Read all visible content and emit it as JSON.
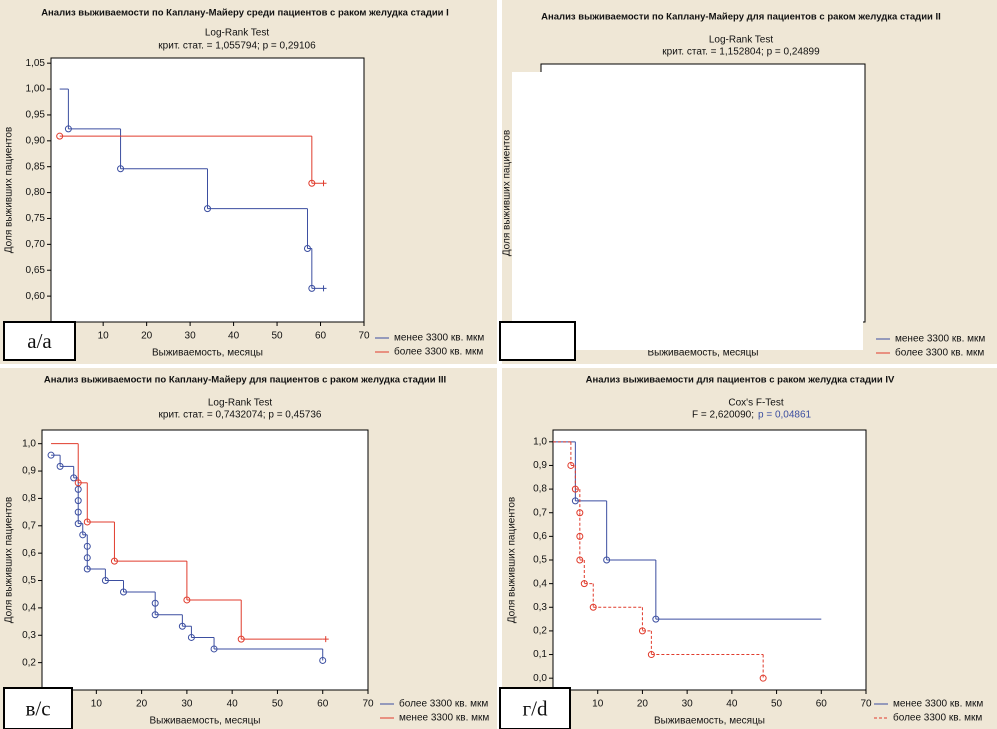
{
  "chart_data": [
    {
      "type": "kaplan-meier",
      "panel_label": "а/а",
      "title": "Анализ выживаемости по Каплану-Майеру среди пациентов с раком желудка стадии I",
      "test": "Log-Rank Test",
      "stat": "крит. стат. = 1,055794; p = 0,29106",
      "xlabel": "Выживаемость, месяцы",
      "ylabel": "Доля выживших пациентов",
      "xlim": [
        -2,
        70
      ],
      "xticks": [
        10,
        20,
        30,
        40,
        50,
        60,
        70
      ],
      "ylim": [
        0.55,
        1.06
      ],
      "yticks": [
        {
          "value": 0.6,
          "label": "0,60"
        },
        {
          "value": 0.65,
          "label": "0,65"
        },
        {
          "value": 0.7,
          "label": "0,70"
        },
        {
          "value": 0.75,
          "label": "0,75"
        },
        {
          "value": 0.8,
          "label": "0,80"
        },
        {
          "value": 0.85,
          "label": "0,85"
        },
        {
          "value": 0.9,
          "label": "0,90"
        },
        {
          "value": 0.95,
          "label": "0,95"
        },
        {
          "value": 1.0,
          "label": "1,00"
        },
        {
          "value": 1.05,
          "label": "1,05"
        }
      ],
      "censored_end_marks": true,
      "series": [
        {
          "name": "менее 3300 кв. мкм",
          "color": "#3b4ea0",
          "x": [
            0,
            2,
            14,
            34,
            57,
            58,
            60
          ],
          "values": [
            1.0,
            0.923,
            0.846,
            0.769,
            0.692,
            0.615,
            0.615
          ]
        },
        {
          "name": "более 3300 кв. мкм",
          "color": "#e03b2c",
          "x": [
            0,
            58,
            60
          ],
          "values": [
            0.909,
            0.818,
            0.818
          ]
        }
      ]
    },
    {
      "type": "kaplan-meier",
      "title": "Анализ выживаемости по Каплану-Майеру для пациентов с раком желудка стадии II",
      "test": "Log-Rank Test",
      "stat": "крит. стат. = 1,152804; p = 0,24899",
      "xlabel": "Выживаемость, месяцы",
      "ylabel": "Доля выживших пациентов",
      "series": [
        {
          "name": "менее 3300 кв. мкм",
          "color": "#3b4ea0"
        },
        {
          "name": "более 3300 кв. мкм",
          "color": "#e03b2c"
        }
      ]
    },
    {
      "type": "kaplan-meier",
      "panel_label": "в/с",
      "title": "Анализ выживаемости по Каплану-Майеру для пациентов с раком желудка стадии III",
      "test": "Log-Rank Test",
      "stat": "крит. стат. = 0,7432074; p = 0,45736",
      "xlabel": "Выживаемость, месяцы",
      "ylabel": "Доля выживших пациентов",
      "xlim": [
        -2,
        70
      ],
      "xticks": [
        10,
        20,
        30,
        40,
        50,
        60,
        70
      ],
      "ylim": [
        0.1,
        1.05
      ],
      "yticks": [
        {
          "value": 0.2,
          "label": "0,2"
        },
        {
          "value": 0.3,
          "label": "0,3"
        },
        {
          "value": 0.4,
          "label": "0,4"
        },
        {
          "value": 0.5,
          "label": "0,5"
        },
        {
          "value": 0.6,
          "label": "0,6"
        },
        {
          "value": 0.7,
          "label": "0,7"
        },
        {
          "value": 0.8,
          "label": "0,8"
        },
        {
          "value": 0.9,
          "label": "0,9"
        },
        {
          "value": 1.0,
          "label": "1,0"
        }
      ],
      "censored_end_marks": true,
      "series": [
        {
          "name": "более 3300 кв. мкм",
          "color": "#3b4ea0",
          "x": [
            0,
            2,
            5,
            6,
            6,
            6,
            6,
            7,
            8,
            8,
            8,
            12,
            16,
            23,
            23,
            29,
            31,
            36,
            60
          ],
          "values": [
            0.958,
            0.917,
            0.875,
            0.833,
            0.792,
            0.75,
            0.708,
            0.667,
            0.625,
            0.583,
            0.542,
            0.5,
            0.458,
            0.417,
            0.375,
            0.333,
            0.292,
            0.25,
            0.208
          ]
        },
        {
          "name": "менее 3300 кв. мкм",
          "color": "#e03b2c",
          "x": [
            0,
            6,
            8,
            14,
            30,
            42,
            60
          ],
          "values": [
            1.0,
            0.857,
            0.714,
            0.571,
            0.429,
            0.286,
            0.286
          ]
        }
      ]
    },
    {
      "type": "kaplan-meier",
      "panel_label": "г/d",
      "title": "Анализ выживаемости для пациентов с раком желудка стадии IV",
      "test": "Cox's F-Test",
      "stat": "F = 2,620090;",
      "stat_p": "p = 0,04861",
      "stat_p_color": "#3b4ea0",
      "xlabel": "Выживаемость, месяцы",
      "ylabel": "Доля выживших пациентов",
      "xlim": [
        0,
        70
      ],
      "xticks": [
        10,
        20,
        30,
        40,
        50,
        60,
        70
      ],
      "ylim": [
        -0.05,
        1.05
      ],
      "yticks": [
        {
          "value": 0,
          "label": "0,0"
        },
        {
          "value": 0.1,
          "label": "0,1"
        },
        {
          "value": 0.2,
          "label": "0,2"
        },
        {
          "value": 0.3,
          "label": "0,3"
        },
        {
          "value": 0.4,
          "label": "0,4"
        },
        {
          "value": 0.5,
          "label": "0,5"
        },
        {
          "value": 0.6,
          "label": "0,6"
        },
        {
          "value": 0.7,
          "label": "0,7"
        },
        {
          "value": 0.8,
          "label": "0,8"
        },
        {
          "value": 0.9,
          "label": "0,9"
        },
        {
          "value": 1.0,
          "label": "1,0"
        }
      ],
      "censored_end_marks": false,
      "series": [
        {
          "name": "менее 3300 кв. мкм",
          "color": "#3b4ea0",
          "x": [
            0,
            5,
            12,
            23,
            60
          ],
          "values": [
            1.0,
            0.75,
            0.5,
            0.25,
            0.25
          ]
        },
        {
          "name": "более 3300 кв. мкм",
          "color": "#e03b2c",
          "dashed": true,
          "x": [
            0,
            4,
            5,
            6,
            6,
            6,
            7,
            9,
            20,
            22,
            47
          ],
          "values": [
            1.0,
            0.9,
            0.8,
            0.7,
            0.6,
            0.5,
            0.4,
            0.3,
            0.2,
            0.1,
            0.0
          ]
        }
      ]
    }
  ]
}
